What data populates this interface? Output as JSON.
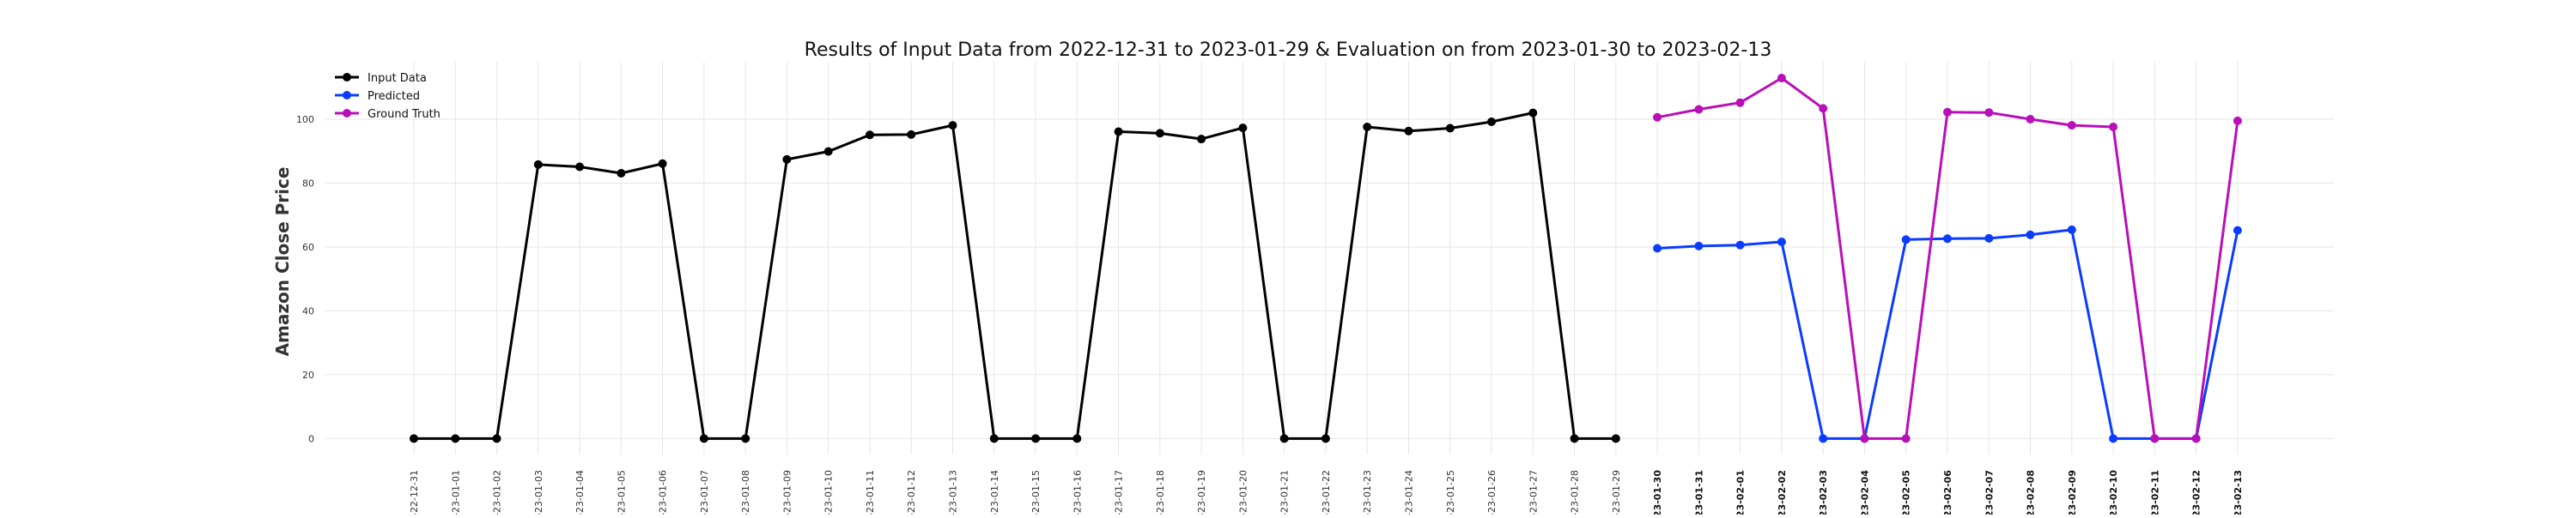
{
  "chart_data": {
    "type": "line",
    "title": "Results of Input Data from 2022-12-31 to 2023-01-29 & Evaluation on from 2023-01-30 to 2023-02-13",
    "xlabel": "",
    "ylabel": "Amazon Close Price",
    "ylim": [
      -5,
      118
    ],
    "yticks": [
      0,
      20,
      40,
      60,
      80,
      100
    ],
    "grid": true,
    "legend_position": "top-left",
    "x_tick_labels": [
      "-22-12-31",
      "-23-01-01",
      "-23-01-02",
      "-23-01-03",
      "-23-01-04",
      "-23-01-05",
      "-23-01-06",
      "-23-01-07",
      "-23-01-08",
      "-23-01-09",
      "-23-01-10",
      "-23-01-11",
      "-23-01-12",
      "-23-01-13",
      "-23-01-14",
      "-23-01-15",
      "-23-01-16",
      "-23-01-17",
      "-23-01-18",
      "-23-01-19",
      "-23-01-20",
      "-23-01-21",
      "-23-01-22",
      "-23-01-23",
      "-23-01-24",
      "-23-01-25",
      "-23-01-26",
      "-23-01-27",
      "-23-01-28",
      "-23-01-29",
      "-23-01-30",
      "-23-01-31",
      "-23-02-01",
      "-23-02-02",
      "-23-02-03",
      "-23-02-04",
      "-23-02-05",
      "-23-02-06",
      "-23-02-07",
      "-23-02-08",
      "-23-02-09",
      "-23-02-10",
      "-23-02-11",
      "-23-02-12",
      "-23-02-13"
    ],
    "bold_tick_from": "-23-01-30",
    "series": [
      {
        "name": "Input Data",
        "color": "#000000",
        "x": [
          "2022-12-31",
          "2023-01-01",
          "2023-01-02",
          "2023-01-03",
          "2023-01-04",
          "2023-01-05",
          "2023-01-06",
          "2023-01-07",
          "2023-01-08",
          "2023-01-09",
          "2023-01-10",
          "2023-01-11",
          "2023-01-12",
          "2023-01-13",
          "2023-01-14",
          "2023-01-15",
          "2023-01-16",
          "2023-01-17",
          "2023-01-18",
          "2023-01-19",
          "2023-01-20",
          "2023-01-21",
          "2023-01-22",
          "2023-01-23",
          "2023-01-24",
          "2023-01-25",
          "2023-01-26",
          "2023-01-27",
          "2023-01-28",
          "2023-01-29"
        ],
        "values": [
          0,
          0,
          0,
          85.8,
          85.1,
          83.1,
          86.1,
          0,
          0,
          87.4,
          89.9,
          95.1,
          95.2,
          98.1,
          0,
          0,
          0,
          96.1,
          95.6,
          93.8,
          97.3,
          0,
          0,
          97.6,
          96.3,
          97.2,
          99.2,
          102.0,
          0,
          0
        ]
      },
      {
        "name": "Predicted",
        "color": "#0a3cff",
        "x": [
          "2023-01-30",
          "2023-01-31",
          "2023-02-01",
          "2023-02-02",
          "2023-02-03",
          "2023-02-04",
          "2023-02-05",
          "2023-02-06",
          "2023-02-07",
          "2023-02-08",
          "2023-02-09",
          "2023-02-10",
          "2023-02-11",
          "2023-02-12",
          "2023-02-13"
        ],
        "values": [
          59.6,
          60.3,
          60.6,
          61.6,
          0,
          0,
          62.3,
          62.6,
          62.7,
          63.8,
          65.4,
          0,
          0,
          0,
          65.2
        ]
      },
      {
        "name": "Ground Truth",
        "color": "#b90fb9",
        "x": [
          "2023-01-30",
          "2023-01-31",
          "2023-02-01",
          "2023-02-02",
          "2023-02-03",
          "2023-02-04",
          "2023-02-05",
          "2023-02-06",
          "2023-02-07",
          "2023-02-08",
          "2023-02-09",
          "2023-02-10",
          "2023-02-11",
          "2023-02-12",
          "2023-02-13"
        ],
        "values": [
          100.6,
          103.1,
          105.2,
          112.9,
          103.4,
          0,
          0,
          102.2,
          102.1,
          100.0,
          98.1,
          97.6,
          0,
          0,
          99.5
        ]
      }
    ]
  }
}
